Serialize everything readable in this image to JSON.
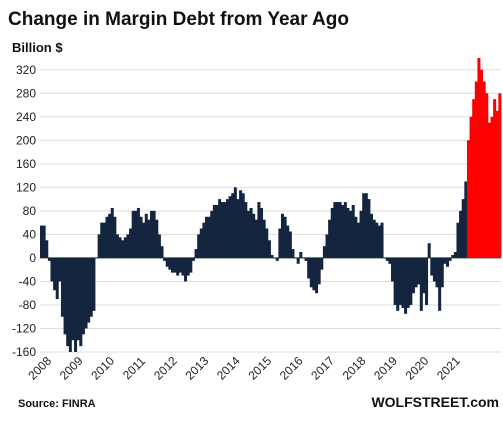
{
  "header": {
    "title": "Change in Margin Debt from Year Ago",
    "unit": "Billion $"
  },
  "footer": {
    "source": "Source: FINRA",
    "brand": "WOLFSTREET.com"
  },
  "colors": {
    "negative_period": "#14253f",
    "recent_surge": "#ff0000",
    "grid": "#dddddd"
  },
  "chart_data": {
    "type": "bar",
    "title": "Change in Margin Debt from Year Ago",
    "ylabel": "Billion $",
    "ylim": [
      -160,
      340
    ],
    "yticks": [
      -160,
      -120,
      -80,
      -40,
      0,
      40,
      80,
      120,
      160,
      200,
      240,
      280,
      320
    ],
    "year_labels": [
      "2008",
      "2009",
      "2010",
      "2011",
      "2012",
      "2013",
      "2014",
      "2015",
      "2016",
      "2017",
      "2018",
      "2019",
      "2020",
      "2021"
    ],
    "start_year": "2008",
    "frequency": "monthly",
    "grid": "horizontal",
    "values": [
      55,
      55,
      30,
      -5,
      -40,
      -55,
      -70,
      -40,
      -100,
      -130,
      -150,
      -160,
      -140,
      -160,
      -140,
      -150,
      -130,
      -120,
      -110,
      -100,
      -90,
      0,
      40,
      60,
      60,
      70,
      75,
      85,
      70,
      40,
      35,
      30,
      35,
      40,
      50,
      80,
      80,
      85,
      70,
      60,
      75,
      65,
      80,
      80,
      65,
      40,
      20,
      -5,
      -15,
      -20,
      -25,
      -25,
      -30,
      -25,
      -30,
      -40,
      -30,
      -25,
      -5,
      15,
      40,
      50,
      60,
      70,
      70,
      80,
      90,
      90,
      100,
      95,
      95,
      100,
      105,
      110,
      120,
      100,
      115,
      110,
      95,
      80,
      85,
      75,
      65,
      95,
      85,
      65,
      50,
      30,
      5,
      0,
      -5,
      50,
      75,
      70,
      55,
      45,
      15,
      0,
      -10,
      10,
      0,
      -5,
      -35,
      -50,
      -55,
      -60,
      -45,
      -20,
      20,
      40,
      65,
      85,
      95,
      95,
      95,
      90,
      95,
      85,
      80,
      90,
      70,
      60,
      80,
      110,
      110,
      100,
      75,
      65,
      60,
      55,
      60,
      0,
      -5,
      -10,
      -40,
      -80,
      -90,
      -80,
      -85,
      -95,
      -85,
      -80,
      -60,
      -50,
      -45,
      -90,
      -60,
      -80,
      25,
      -30,
      -40,
      -50,
      -90,
      -50,
      -10,
      -15,
      -5,
      5,
      10,
      60,
      80,
      100,
      130,
      200,
      240,
      270,
      300,
      340,
      320,
      300,
      280,
      230,
      240,
      270,
      250,
      280
    ],
    "bar_colors": {
      "before_index": 163,
      "dark": "#14253f",
      "red": "#ff0000"
    }
  }
}
